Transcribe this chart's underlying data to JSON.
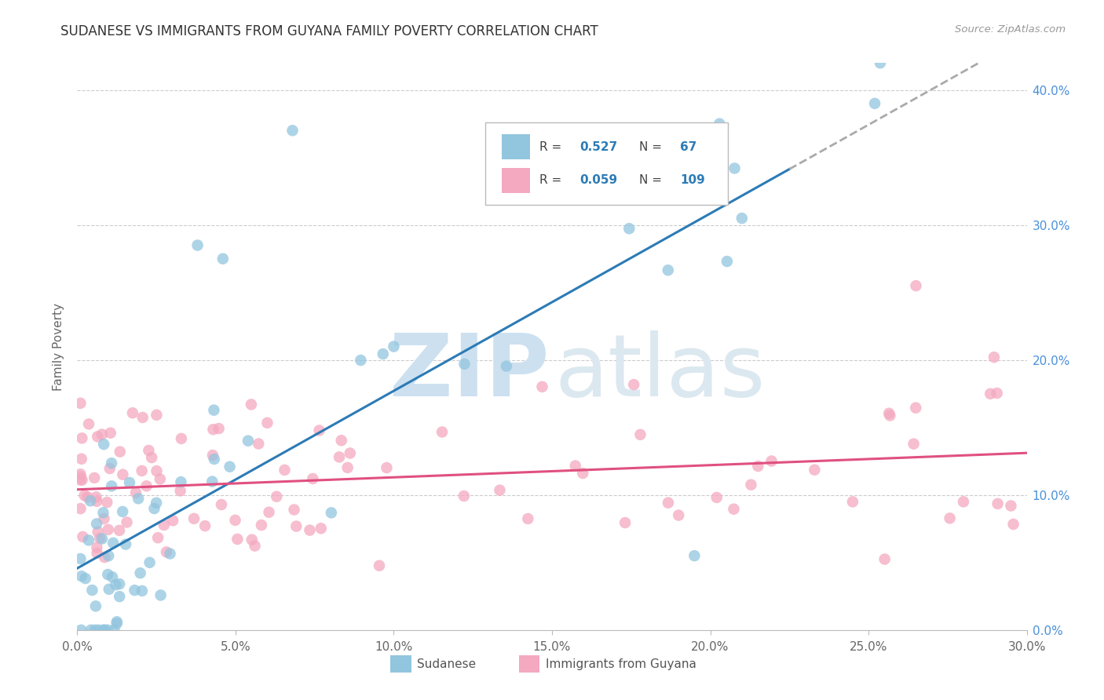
{
  "title": "SUDANESE VS IMMIGRANTS FROM GUYANA FAMILY POVERTY CORRELATION CHART",
  "source": "Source: ZipAtlas.com",
  "ylabel": "Family Poverty",
  "xmin": 0.0,
  "xmax": 0.3,
  "ymin": 0.0,
  "ymax": 0.42,
  "xtick_vals": [
    0.0,
    0.05,
    0.1,
    0.15,
    0.2,
    0.25,
    0.3
  ],
  "xtick_labels": [
    "0.0%",
    "5.0%",
    "10.0%",
    "15.0%",
    "20.0%",
    "25.0%",
    "30.0%"
  ],
  "ytick_vals": [
    0.0,
    0.1,
    0.2,
    0.3,
    0.4
  ],
  "ytick_labels": [
    "0.0%",
    "10.0%",
    "20.0%",
    "30.0%",
    "40.0%"
  ],
  "color_blue": "#92c5de",
  "color_pink": "#f4a9c0",
  "color_blue_line": "#2c7bb6",
  "color_pink_line": "#d7191c",
  "color_pink_line2": "#e05080",
  "watermark_zip_color": "#cce0f0",
  "watermark_atlas_color": "#dce8f0",
  "label1": "Sudanese",
  "label2": "Immigrants from Guyana",
  "legend_R1": "0.527",
  "legend_N1": "67",
  "legend_R2": "0.059",
  "legend_N2": "109",
  "blue_seed": 7,
  "pink_seed": 13
}
